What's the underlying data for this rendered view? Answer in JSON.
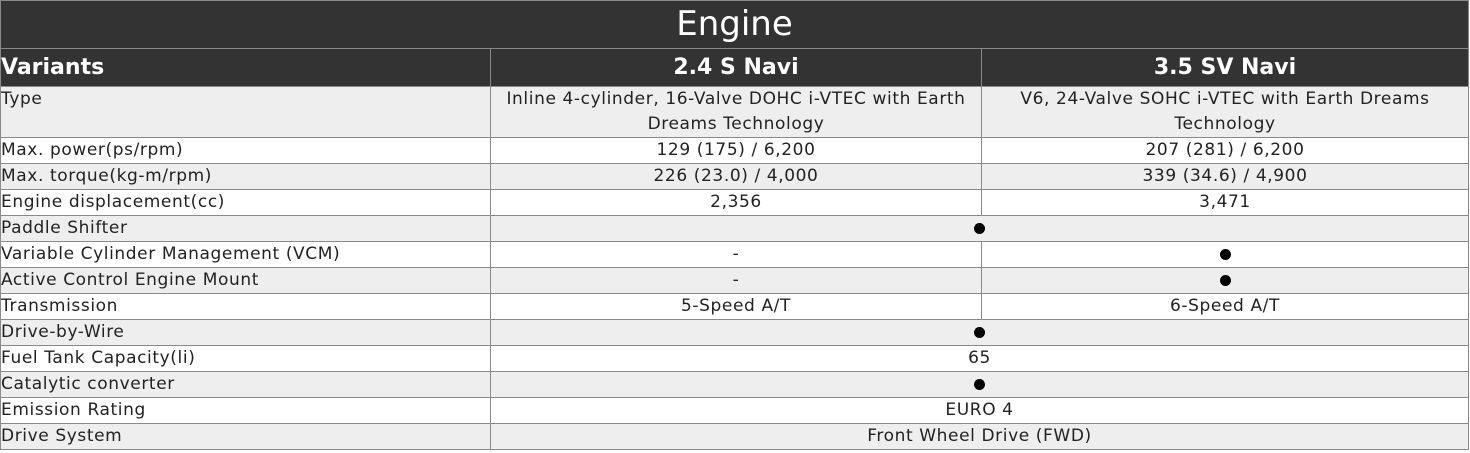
{
  "title": "Engine",
  "columns": {
    "label": "Variants",
    "variant_a": "2.4 S Navi",
    "variant_b": "3.5 SV Navi"
  },
  "rows": [
    {
      "label": "Type",
      "a": "Inline 4-cylinder, 16-Valve DOHC i-VTEC with Earth Dreams Technology",
      "b": "V6, 24-Valve SOHC i-VTEC with Earth Dreams Technology"
    },
    {
      "label": "Max. power(ps/rpm)",
      "a": "129 (175) / 6,200",
      "b": "207 (281) / 6,200"
    },
    {
      "label": "Max. torque(kg-m/rpm)",
      "a": "226 (23.0) / 4,000",
      "b": "339 (34.6) / 4,900"
    },
    {
      "label": "Engine displacement(cc)",
      "a": "2,356",
      "b": "3,471"
    },
    {
      "label": "Paddle Shifter",
      "both": "●"
    },
    {
      "label": "Variable Cylinder Management (VCM)",
      "a": "-",
      "b": "●"
    },
    {
      "label": "Active Control Engine Mount",
      "a": "-",
      "b": "●"
    },
    {
      "label": "Transmission",
      "a": "5-Speed A/T",
      "b": "6-Speed A/T"
    },
    {
      "label": "Drive-by-Wire",
      "both": "●"
    },
    {
      "label": "Fuel Tank Capacity(li)",
      "both": "65"
    },
    {
      "label": "Catalytic converter",
      "both": "●"
    },
    {
      "label": "Emission Rating",
      "both": "EURO 4"
    },
    {
      "label": "Drive System",
      "both": "Front Wheel Drive (FWD)"
    }
  ]
}
